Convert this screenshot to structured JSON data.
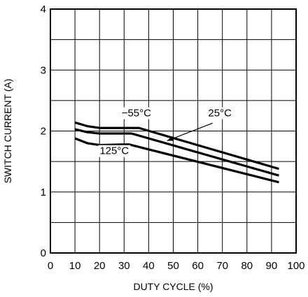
{
  "chart_data": {
    "type": "line",
    "title": "",
    "xlabel": "DUTY CYCLE (%)",
    "ylabel": "SWITCH CURRENT (A)",
    "xlim": [
      0,
      100
    ],
    "ylim": [
      0,
      4
    ],
    "x_ticks": [
      "0",
      "10",
      "20",
      "30",
      "40",
      "50",
      "60",
      "70",
      "80",
      "90",
      "100"
    ],
    "y_ticks": [
      "0",
      "1",
      "2",
      "3",
      "4"
    ],
    "grid": true,
    "series": [
      {
        "name": "−55°C",
        "x": [
          10,
          15,
          20,
          30,
          36,
          93
        ],
        "y": [
          2.14,
          2.08,
          2.05,
          2.05,
          2.05,
          1.38
        ]
      },
      {
        "name": "25°C",
        "x": [
          10,
          15,
          20,
          30,
          33,
          93
        ],
        "y": [
          2.03,
          1.98,
          1.96,
          1.96,
          1.96,
          1.27
        ]
      },
      {
        "name": "125°C",
        "x": [
          10,
          15,
          20,
          30,
          32,
          93
        ],
        "y": [
          1.88,
          1.8,
          1.77,
          1.78,
          1.78,
          1.16
        ]
      }
    ],
    "annotations": [
      {
        "text": "−55°C",
        "x": 35,
        "y": 2.24
      },
      {
        "text": "25°C",
        "x": 69,
        "y": 2.24
      },
      {
        "text": "125°C",
        "x": 26,
        "y": 1.62
      }
    ]
  }
}
